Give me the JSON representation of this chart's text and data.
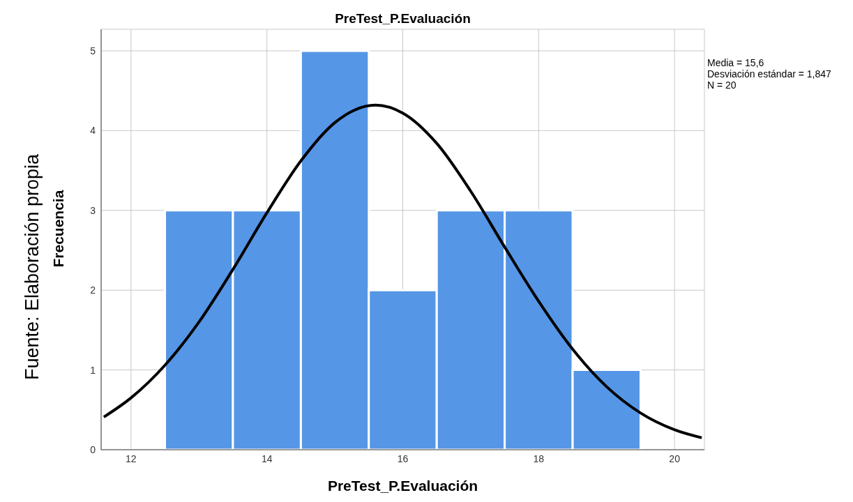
{
  "chart_data": {
    "type": "histogram",
    "title": "PreTest_P.Evaluación",
    "xlabel": "PreTest_P.Evaluación",
    "ylabel": "Frecuencia",
    "bins": [
      12.5,
      13.5,
      14.5,
      15.5,
      16.5,
      17.5,
      18.5,
      19.5
    ],
    "values": [
      3,
      3,
      5,
      2,
      3,
      3,
      1
    ],
    "color": "#5596e6",
    "series": [
      {
        "type": "line",
        "color": "#000000",
        "x": [
          11.6,
          12,
          12.5,
          13,
          13.5,
          14,
          14.5,
          15,
          15.6,
          16,
          16.5,
          17,
          17.5,
          18,
          18.5,
          19,
          19.5,
          20,
          20.4
        ],
        "values": [
          0.41,
          0.65,
          1.06,
          1.6,
          2.26,
          2.97,
          3.62,
          4.1,
          4.32,
          4.22,
          3.84,
          3.24,
          2.54,
          1.86,
          1.26,
          0.79,
          0.46,
          0.25,
          0.15
        ]
      }
    ],
    "xlim": [
      11.56,
      20.44
    ],
    "xticks": [
      12,
      14,
      16,
      18,
      20
    ],
    "ylim": [
      0,
      5.27
    ],
    "yticks": [
      0,
      1,
      2,
      3,
      4,
      5
    ],
    "grid": true,
    "annotations": [
      "Media = 15,6",
      "Desviación estándar = 1,847",
      "N = 20",
      "Fuente: Elaboración propia"
    ]
  }
}
